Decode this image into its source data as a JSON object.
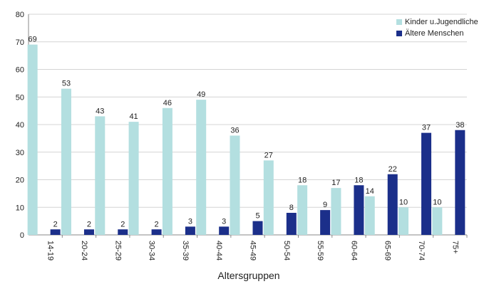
{
  "chart_data": {
    "type": "bar",
    "xlabel": "Altersgruppen",
    "ylabel": "",
    "ylim": [
      0,
      80
    ],
    "yticks": [
      0,
      10,
      20,
      30,
      40,
      50,
      60,
      70,
      80
    ],
    "grid": true,
    "legend_position": "top-right",
    "categories": [
      "14-19",
      "20-24",
      "25-29",
      "30-34",
      "35-39",
      "40-44",
      "45-49",
      "50-54",
      "55-59",
      "60-64",
      "65-69",
      "70-74",
      "75+"
    ],
    "series": [
      {
        "name": "Kinder u.Jugendliche",
        "color": "#b3dfe0",
        "values": [
          69,
          53,
          43,
          41,
          46,
          49,
          36,
          27,
          18,
          17,
          14,
          10,
          10
        ]
      },
      {
        "name": "Ältere Menschen",
        "color": "#1b2f8a",
        "values": [
          2,
          2,
          2,
          2,
          3,
          3,
          5,
          8,
          9,
          18,
          22,
          37,
          38
        ]
      }
    ]
  }
}
